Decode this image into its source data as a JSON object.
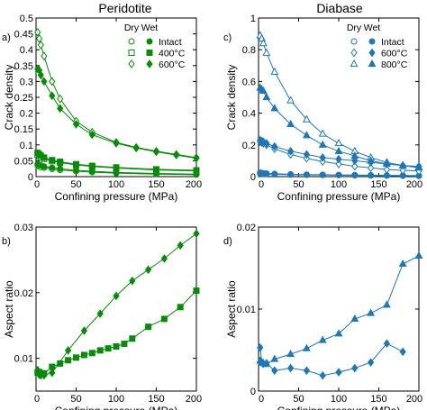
{
  "panel_titles": {
    "left": "Peridotite",
    "right": "Diabase"
  },
  "legend_labels": {
    "dry": "Dry",
    "wet": "Wet",
    "a": [
      "Intact",
      "400°C",
      "600°C"
    ],
    "c": [
      "Intact",
      "600°C",
      "800°C"
    ]
  },
  "chart_data": [
    {
      "panel_label": "a)",
      "type": "line",
      "xlabel": "Confining pressure (MPa)",
      "ylabel": "Crack density",
      "xlim": [
        0,
        200
      ],
      "ylim": [
        0,
        0.5
      ],
      "xticks": [
        "0",
        "50",
        "100",
        "150",
        "200"
      ],
      "yticks": [
        "0",
        "0.05",
        "0.1",
        "0.15",
        "0.2",
        "0.25",
        "0.3",
        "0.35",
        "0.4",
        "0.45",
        "0.5"
      ],
      "color": "#0a8a0a",
      "grid": false,
      "legend_position": "top-right",
      "series": [
        {
          "name": "Intact",
          "condition": "Dry",
          "marker": "circle",
          "filled": false,
          "x": [
            2,
            4,
            6,
            10,
            20,
            30,
            50,
            70,
            100,
            150,
            200
          ],
          "y": [
            0.035,
            0.032,
            0.03,
            0.028,
            0.024,
            0.021,
            0.017,
            0.014,
            0.011,
            0.008,
            0.006
          ]
        },
        {
          "name": "Intact",
          "condition": "Wet",
          "marker": "circle",
          "filled": true,
          "x": [
            2,
            4,
            6,
            10,
            20,
            30,
            50,
            70,
            100,
            150,
            200
          ],
          "y": [
            0.04,
            0.037,
            0.035,
            0.032,
            0.028,
            0.025,
            0.02,
            0.017,
            0.013,
            0.01,
            0.008
          ]
        },
        {
          "name": "400°C",
          "condition": "Dry",
          "marker": "square",
          "filled": false,
          "x": [
            2,
            4,
            6,
            10,
            20,
            30,
            50,
            70,
            100,
            150,
            200
          ],
          "y": [
            0.07,
            0.065,
            0.061,
            0.056,
            0.049,
            0.044,
            0.037,
            0.032,
            0.027,
            0.021,
            0.018
          ]
        },
        {
          "name": "400°C",
          "condition": "Wet",
          "marker": "square",
          "filled": true,
          "x": [
            2,
            4,
            6,
            10,
            20,
            30,
            50,
            70,
            100,
            150,
            200
          ],
          "y": [
            0.075,
            0.07,
            0.066,
            0.06,
            0.052,
            0.047,
            0.039,
            0.034,
            0.029,
            0.023,
            0.02
          ]
        },
        {
          "name": "600°C",
          "condition": "Dry",
          "marker": "diamond",
          "filled": false,
          "x": [
            2,
            4,
            6,
            10,
            20,
            30,
            50,
            70,
            100,
            125,
            150,
            175,
            200
          ],
          "y": [
            0.455,
            0.435,
            0.415,
            0.38,
            0.3,
            0.245,
            0.175,
            0.14,
            0.108,
            0.092,
            0.08,
            0.07,
            0.06
          ]
        },
        {
          "name": "600°C",
          "condition": "Wet",
          "marker": "diamond",
          "filled": true,
          "x": [
            2,
            4,
            6,
            10,
            20,
            30,
            50,
            70,
            100,
            125,
            150,
            175,
            200
          ],
          "y": [
            0.34,
            0.335,
            0.32,
            0.3,
            0.255,
            0.215,
            0.165,
            0.132,
            0.105,
            0.09,
            0.078,
            0.068,
            0.058
          ]
        }
      ]
    },
    {
      "panel_label": "b)",
      "type": "line",
      "xlabel": "Confining pressure (MPa)",
      "ylabel": "Aspect ratio",
      "xlim": [
        0,
        200
      ],
      "ylim": [
        0.005,
        0.03
      ],
      "xticks": [
        "0",
        "50",
        "100",
        "150",
        "200"
      ],
      "yticks": [
        "0.01",
        "0.02",
        "0.03"
      ],
      "color": "#0a8a0a",
      "grid": false,
      "series": [
        {
          "name": "400°C",
          "marker": "square",
          "filled": true,
          "x": [
            2,
            4,
            6,
            10,
            20,
            30,
            40,
            50,
            60,
            70,
            80,
            90,
            100,
            110,
            120,
            140,
            160,
            180,
            200
          ],
          "y": [
            0.0078,
            0.0079,
            0.0077,
            0.0077,
            0.0087,
            0.0092,
            0.0097,
            0.0101,
            0.0105,
            0.0108,
            0.0112,
            0.0115,
            0.0118,
            0.0122,
            0.013,
            0.0148,
            0.016,
            0.0178,
            0.0203
          ]
        },
        {
          "name": "600°C",
          "marker": "diamond",
          "filled": true,
          "x": [
            2,
            4,
            6,
            10,
            20,
            40,
            60,
            80,
            100,
            120,
            140,
            160,
            180,
            200
          ],
          "y": [
            0.0082,
            0.0075,
            0.0074,
            0.0074,
            0.0078,
            0.0112,
            0.0142,
            0.0168,
            0.0195,
            0.0218,
            0.0235,
            0.0252,
            0.0272,
            0.029
          ]
        }
      ]
    },
    {
      "panel_label": "c)",
      "type": "line",
      "xlabel": "Confining pressure (MPa)",
      "ylabel": "Crack density",
      "xlim": [
        0,
        200
      ],
      "ylim": [
        0,
        1
      ],
      "xticks": [
        "0",
        "50",
        "100",
        "150",
        "200"
      ],
      "yticks": [
        "0",
        "0.2",
        "0.4",
        "0.6",
        "0.8",
        "1"
      ],
      "color": "#1f77b4",
      "grid": false,
      "legend_position": "top-right",
      "series": [
        {
          "name": "Intact",
          "condition": "Dry",
          "marker": "circle",
          "filled": false,
          "x": [
            2,
            4,
            6,
            10,
            20,
            40,
            60,
            80,
            100,
            120,
            140,
            160,
            180,
            200
          ],
          "y": [
            0.02,
            0.018,
            0.017,
            0.016,
            0.014,
            0.012,
            0.011,
            0.01,
            0.009,
            0.008,
            0.007,
            0.006,
            0.005,
            0.004
          ]
        },
        {
          "name": "Intact",
          "condition": "Wet",
          "marker": "circle",
          "filled": true,
          "x": [
            2,
            4,
            6,
            10,
            20,
            40,
            60,
            80,
            100,
            120,
            140,
            160,
            180,
            200
          ],
          "y": [
            0.025,
            0.023,
            0.021,
            0.02,
            0.018,
            0.015,
            0.013,
            0.012,
            0.011,
            0.01,
            0.009,
            0.008,
            0.007,
            0.006
          ]
        },
        {
          "name": "600°C",
          "condition": "Dry",
          "marker": "diamond",
          "filled": false,
          "x": [
            2,
            4,
            6,
            10,
            20,
            40,
            60,
            80,
            100,
            120,
            140,
            160,
            180,
            200
          ],
          "y": [
            0.22,
            0.215,
            0.21,
            0.2,
            0.175,
            0.14,
            0.115,
            0.095,
            0.08,
            0.065,
            0.055,
            0.045,
            0.04,
            0.035
          ]
        },
        {
          "name": "600°C",
          "condition": "Wet",
          "marker": "diamond",
          "filled": true,
          "x": [
            2,
            4,
            6,
            10,
            20,
            40,
            60,
            80,
            100,
            120,
            140,
            160,
            180,
            200
          ],
          "y": [
            0.23,
            0.225,
            0.22,
            0.21,
            0.19,
            0.16,
            0.14,
            0.12,
            0.11,
            0.1,
            0.09,
            0.08,
            0.07,
            0.065
          ]
        },
        {
          "name": "800°C",
          "condition": "Dry",
          "marker": "triangle",
          "filled": false,
          "x": [
            2,
            4,
            6,
            10,
            20,
            40,
            60,
            80,
            100,
            120,
            140,
            160,
            180,
            200
          ],
          "y": [
            0.89,
            0.87,
            0.84,
            0.78,
            0.66,
            0.48,
            0.36,
            0.27,
            0.21,
            0.16,
            0.12,
            0.09,
            0.07,
            0.055
          ]
        },
        {
          "name": "800°C",
          "condition": "Wet",
          "marker": "triangle",
          "filled": true,
          "x": [
            2,
            4,
            6,
            10,
            20,
            40,
            60,
            80,
            100,
            120,
            140,
            160,
            180,
            200
          ],
          "y": [
            0.56,
            0.55,
            0.54,
            0.5,
            0.43,
            0.33,
            0.26,
            0.2,
            0.16,
            0.13,
            0.1,
            0.08,
            0.07,
            0.06
          ]
        }
      ]
    },
    {
      "panel_label": "d)",
      "type": "line",
      "xlabel": "Confining pressure (MPa)",
      "ylabel": "Aspect ratio",
      "xlim": [
        0,
        200
      ],
      "ylim": [
        0,
        0.02
      ],
      "xticks": [
        "0",
        "50",
        "100",
        "150",
        "200"
      ],
      "yticks": [
        "0",
        "0.01",
        "0.02"
      ],
      "color": "#1f77b4",
      "grid": false,
      "series": [
        {
          "name": "600°C",
          "marker": "diamond",
          "filled": true,
          "x": [
            2,
            4,
            6,
            10,
            20,
            40,
            60,
            80,
            100,
            120,
            140,
            160,
            180
          ],
          "y": [
            0.0053,
            0.0035,
            0.0033,
            0.0034,
            0.0025,
            0.0028,
            0.0025,
            0.0019,
            0.0023,
            0.0028,
            0.0035,
            0.0058,
            0.0048
          ]
        },
        {
          "name": "800°C",
          "marker": "triangle",
          "filled": true,
          "x": [
            2,
            4,
            6,
            10,
            20,
            40,
            60,
            80,
            100,
            120,
            140,
            160,
            180,
            200
          ],
          "y": [
            0.0037,
            0.0035,
            0.0034,
            0.0033,
            0.0039,
            0.0045,
            0.0052,
            0.0062,
            0.007,
            0.0088,
            0.0095,
            0.0105,
            0.0155,
            0.0165
          ]
        }
      ]
    }
  ]
}
